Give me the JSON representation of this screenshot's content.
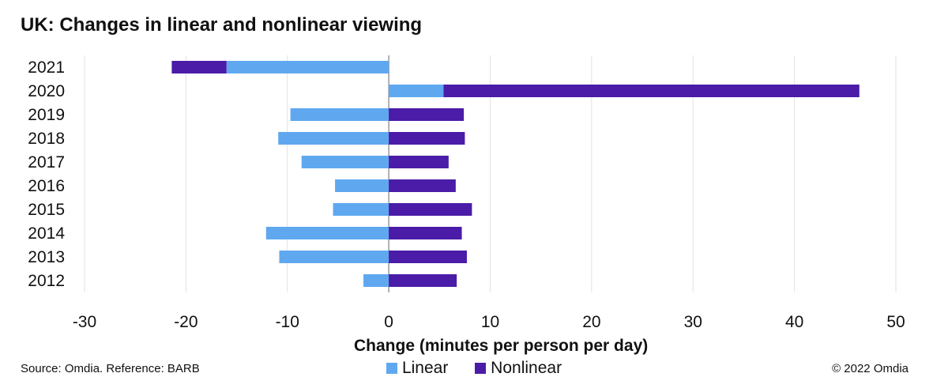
{
  "chart_data": {
    "type": "bar",
    "orientation": "horizontal",
    "stacked": true,
    "title": "UK: Changes in linear and nonlinear viewing",
    "xlabel": "Change (minutes per person per day)",
    "ylabel": "",
    "xlim": [
      -30,
      50
    ],
    "xticks": [
      -30,
      -20,
      -10,
      0,
      10,
      20,
      30,
      40,
      50
    ],
    "grid": true,
    "legend_position": "bottom",
    "categories": [
      "2021",
      "2020",
      "2019",
      "2018",
      "2017",
      "2016",
      "2015",
      "2014",
      "2013",
      "2012"
    ],
    "series": [
      {
        "name": "Linear",
        "color": "#5fa8f0",
        "values": [
          -16.0,
          5.4,
          -9.7,
          -10.9,
          -8.6,
          -5.3,
          -5.5,
          -12.1,
          -10.8,
          -2.5
        ]
      },
      {
        "name": "Nonlinear",
        "color": "#4a1ca8",
        "values": [
          -5.4,
          41.0,
          7.4,
          7.5,
          5.9,
          6.6,
          8.2,
          7.2,
          7.7,
          6.7
        ]
      }
    ]
  },
  "footer": {
    "source": "Source: Omdia. Reference: BARB",
    "copyright": "© 2022 Omdia"
  }
}
